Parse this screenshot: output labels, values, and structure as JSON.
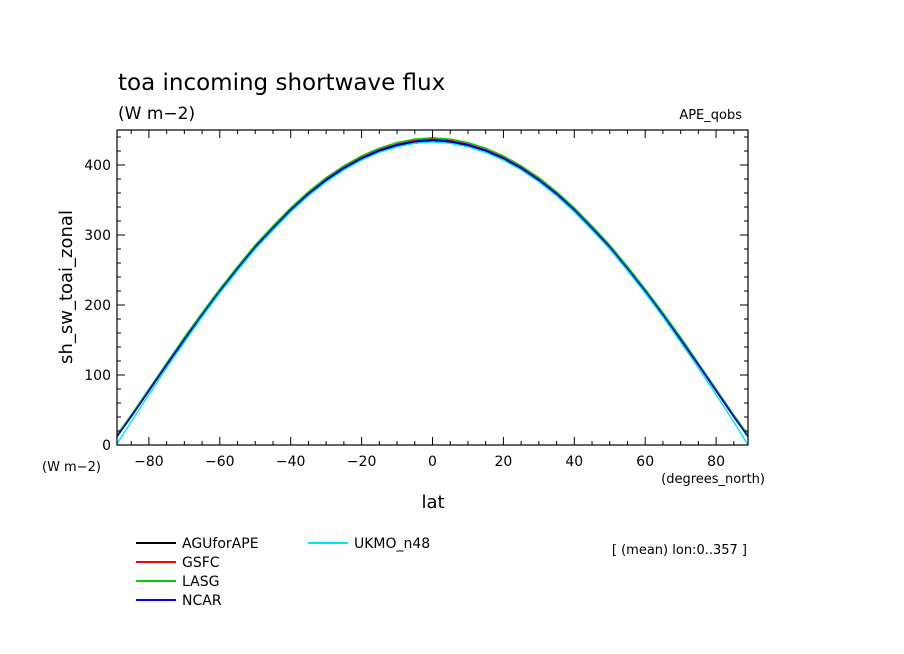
{
  "chart_data": {
    "type": "line",
    "title": "toa incoming shortwave flux",
    "units": "(W m−2)",
    "dataset": "APE_qobs",
    "xlabel": "lat",
    "ylabel": "sh_sw_toai_zonal",
    "x_units": "(degrees_north)",
    "y_units": "(W m−2)",
    "xlim": [
      -89,
      89
    ],
    "ylim": [
      0,
      450
    ],
    "x_ticks": [
      -80,
      -60,
      -40,
      -20,
      0,
      20,
      40,
      60,
      80
    ],
    "x_tick_labels": [
      "−80",
      "−60",
      "−40",
      "−20",
      "0",
      "20",
      "40",
      "60",
      "80"
    ],
    "y_ticks": [
      0,
      100,
      200,
      300,
      400
    ],
    "y_tick_labels": [
      "0",
      "100",
      "200",
      "300",
      "400"
    ],
    "grid": false,
    "legend_placement": "bottom-left",
    "note": "[ (mean) lon:0..357 ]",
    "x": [
      -89,
      -85,
      -80,
      -75,
      -70,
      -65,
      -60,
      -55,
      -50,
      -45,
      -40,
      -35,
      -30,
      -25,
      -20,
      -15,
      -10,
      -5,
      0,
      5,
      10,
      15,
      20,
      25,
      30,
      35,
      40,
      45,
      50,
      55,
      60,
      65,
      70,
      75,
      80,
      85,
      89
    ],
    "series": [
      {
        "name": "AGUforAPE",
        "color": "#000000",
        "values": [
          12,
          40,
          77,
          114,
          150,
          185,
          219,
          251,
          282,
          309,
          335,
          358,
          378,
          395,
          409,
          420,
          428,
          433,
          435,
          433,
          428,
          420,
          409,
          395,
          378,
          358,
          335,
          309,
          282,
          251,
          219,
          185,
          150,
          114,
          77,
          40,
          12
        ]
      },
      {
        "name": "GSFC",
        "color": "#ff0000",
        "values": [
          13,
          41,
          78,
          115,
          152,
          187,
          221,
          253,
          284,
          311,
          337,
          360,
          380,
          397,
          411,
          422,
          430,
          435,
          437,
          435,
          430,
          422,
          411,
          397,
          380,
          360,
          337,
          311,
          284,
          253,
          221,
          187,
          152,
          115,
          78,
          41,
          13
        ]
      },
      {
        "name": "LASG",
        "color": "#00cc00",
        "values": [
          15,
          43,
          80,
          117,
          154,
          189,
          223,
          255,
          286,
          313,
          339,
          362,
          382,
          399,
          413,
          424,
          432,
          437,
          439,
          437,
          432,
          424,
          413,
          399,
          382,
          362,
          339,
          313,
          286,
          255,
          223,
          189,
          154,
          117,
          80,
          43,
          15
        ]
      },
      {
        "name": "NCAR",
        "color": "#0000ff",
        "values": [
          12,
          41,
          78,
          115,
          151,
          186,
          220,
          252,
          283,
          310,
          336,
          359,
          379,
          396,
          410,
          421,
          429,
          434,
          436,
          434,
          429,
          421,
          410,
          396,
          379,
          359,
          336,
          310,
          283,
          252,
          220,
          186,
          151,
          115,
          78,
          41,
          12
        ]
      },
      {
        "name": "UKMO_n48",
        "color": "#00e5ee",
        "values": [
          2,
          33,
          72,
          110,
          147,
          183,
          217,
          249,
          280,
          307,
          333,
          356,
          376,
          393,
          407,
          418,
          426,
          431,
          433,
          431,
          426,
          418,
          407,
          393,
          376,
          356,
          333,
          307,
          280,
          249,
          217,
          183,
          147,
          110,
          72,
          33,
          0
        ]
      }
    ]
  }
}
